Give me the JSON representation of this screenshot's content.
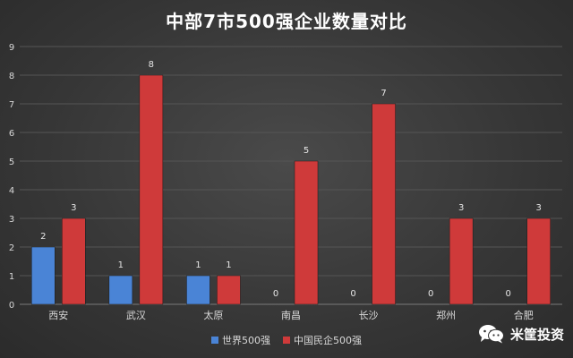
{
  "chart_data": {
    "type": "bar",
    "title": "中部7市500强企业数量对比",
    "categories": [
      "西安",
      "武汉",
      "太原",
      "南昌",
      "长沙",
      "郑州",
      "合肥"
    ],
    "series": [
      {
        "name": "世界500强",
        "values": [
          2,
          1,
          1,
          0,
          0,
          0,
          0
        ],
        "color": "#4a84d6"
      },
      {
        "name": "中国民企500强",
        "values": [
          3,
          8,
          1,
          5,
          7,
          3,
          3
        ],
        "color": "#cf3a3a"
      }
    ],
    "ylim": [
      0,
      9
    ],
    "yticks": [
      0,
      1,
      2,
      3,
      4,
      5,
      6,
      7,
      8,
      9
    ],
    "grid": true,
    "legend_position": "bottom"
  },
  "watermark": {
    "text": "米筐投资",
    "icon": "wechat-icon"
  }
}
